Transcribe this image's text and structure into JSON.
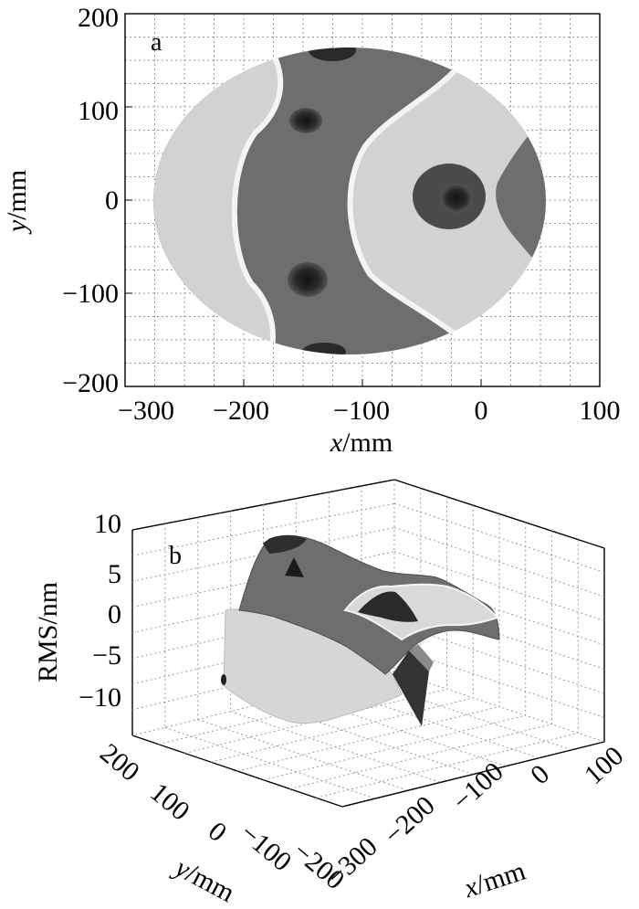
{
  "chart_data": [
    {
      "type": "heatmap",
      "panel_label": "a",
      "xlabel_var": "x",
      "xlabel_unit": "/mm",
      "ylabel_var": "y",
      "ylabel_unit": "/mm",
      "xlim": [
        -300,
        100
      ],
      "ylim": [
        -200,
        200
      ],
      "xticks": [
        "−300",
        "−200",
        "−100",
        "0",
        "100"
      ],
      "yticks": [
        "200",
        "100",
        "0",
        "−100",
        "−200"
      ],
      "grid": true,
      "colors": {
        "light": "#d2d2d2",
        "mid": "#6e6e6e",
        "dark": "#2a2a2a",
        "edge": "#f4f4f4"
      }
    },
    {
      "type": "surface",
      "panel_label": "b",
      "zlabel": "RMS/nm",
      "xlabel_var": "x",
      "xlabel_unit": "/mm",
      "ylabel_var": "y",
      "ylabel_unit": "/mm",
      "xlim": [
        -300,
        100
      ],
      "ylim": [
        -200,
        200
      ],
      "zlim": [
        -10,
        10
      ],
      "zticks": [
        "10",
        "5",
        "0",
        "−5",
        "−10"
      ],
      "xticks": [
        "−300",
        "−200",
        "−100",
        "0",
        "100"
      ],
      "yticks": [
        "200",
        "100",
        "0",
        "−100",
        "−200"
      ],
      "grid": true
    }
  ]
}
